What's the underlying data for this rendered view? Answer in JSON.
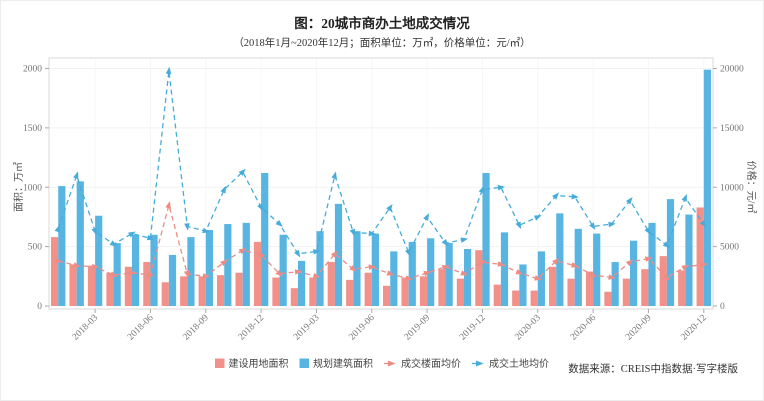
{
  "chart_data": {
    "type": "combo-bar-line",
    "title": "图：20城市商办土地成交情况",
    "subtitle": "（2018年1月~2020年12月；面积单位：万㎡，价格单位：元/㎡）",
    "source": "数据来源：CREIS中指数据·写字楼版",
    "legend_position": "bottom-center",
    "grid": true,
    "categories": [
      "2018-01",
      "2018-02",
      "2018-03",
      "2018-04",
      "2018-05",
      "2018-06",
      "2018-07",
      "2018-08",
      "2018-09",
      "2018-10",
      "2018-11",
      "2018-12",
      "2019-01",
      "2019-02",
      "2019-03",
      "2019-04",
      "2019-05",
      "2019-06",
      "2019-07",
      "2019-08",
      "2019-09",
      "2019-10",
      "2019-11",
      "2019-12",
      "2020-01",
      "2020-02",
      "2020-03",
      "2020-04",
      "2020-05",
      "2020-06",
      "2020-07",
      "2020-08",
      "2020-09",
      "2020-10",
      "2020-11",
      "2020-12"
    ],
    "x_tick_labels": [
      "2018-03",
      "2018-06",
      "2018-09",
      "2018-12",
      "2019-03",
      "2019-06",
      "2019-09",
      "2019-12",
      "2020-03",
      "2020-06",
      "2020-09",
      "2020-12"
    ],
    "left_axis": {
      "label": "面积：万㎡",
      "min": 0,
      "max": 2000,
      "ticks": [
        0,
        500,
        1000,
        1500,
        2000
      ]
    },
    "right_axis": {
      "label": "价格：元/㎡",
      "min": 0,
      "max": 20000,
      "ticks": [
        0,
        5000,
        10000,
        15000,
        20000
      ]
    },
    "series": [
      {
        "name": "建设用地面积",
        "type": "bar",
        "axis": "left",
        "color": "#F2908A",
        "values": [
          580,
          350,
          340,
          280,
          330,
          370,
          200,
          250,
          250,
          260,
          280,
          540,
          240,
          150,
          240,
          370,
          220,
          280,
          170,
          240,
          250,
          310,
          230,
          470,
          180,
          130,
          130,
          330,
          230,
          290,
          120,
          230,
          310,
          420,
          300,
          830
        ]
      },
      {
        "name": "规划建筑面积",
        "type": "bar",
        "axis": "left",
        "color": "#58B5E1",
        "values": [
          1010,
          1050,
          760,
          530,
          600,
          600,
          430,
          580,
          640,
          690,
          700,
          1120,
          600,
          380,
          630,
          860,
          630,
          610,
          460,
          540,
          570,
          530,
          480,
          1120,
          620,
          350,
          460,
          780,
          650,
          610,
          370,
          550,
          700,
          900,
          770,
          1990
        ]
      },
      {
        "name": "成交楼面均价",
        "type": "line",
        "axis": "right",
        "color": "#EC8C85",
        "values": [
          3800,
          3400,
          3300,
          2600,
          2800,
          2600,
          8500,
          2700,
          2500,
          3700,
          4700,
          4300,
          2700,
          2900,
          2500,
          4400,
          3100,
          3300,
          2700,
          2300,
          2800,
          3300,
          2700,
          3700,
          3500,
          2800,
          2300,
          3800,
          3400,
          2600,
          2400,
          3700,
          4000,
          2400,
          3300,
          3500
        ]
      },
      {
        "name": "成交土地均价",
        "type": "line",
        "axis": "right",
        "color": "#46ACDA",
        "values": [
          6500,
          11000,
          6300,
          5200,
          6100,
          5700,
          19800,
          6700,
          6300,
          9800,
          11300,
          8300,
          6900,
          4400,
          4600,
          11000,
          6200,
          6100,
          8300,
          4500,
          7500,
          5300,
          5600,
          9800,
          10000,
          6800,
          7500,
          9300,
          9200,
          6700,
          6900,
          8900,
          6300,
          5100,
          9100,
          6900
        ]
      }
    ],
    "colors": {
      "grid": "#f1f1f1",
      "border": "#d9d9d9",
      "tick": "#aaaaaa"
    }
  }
}
